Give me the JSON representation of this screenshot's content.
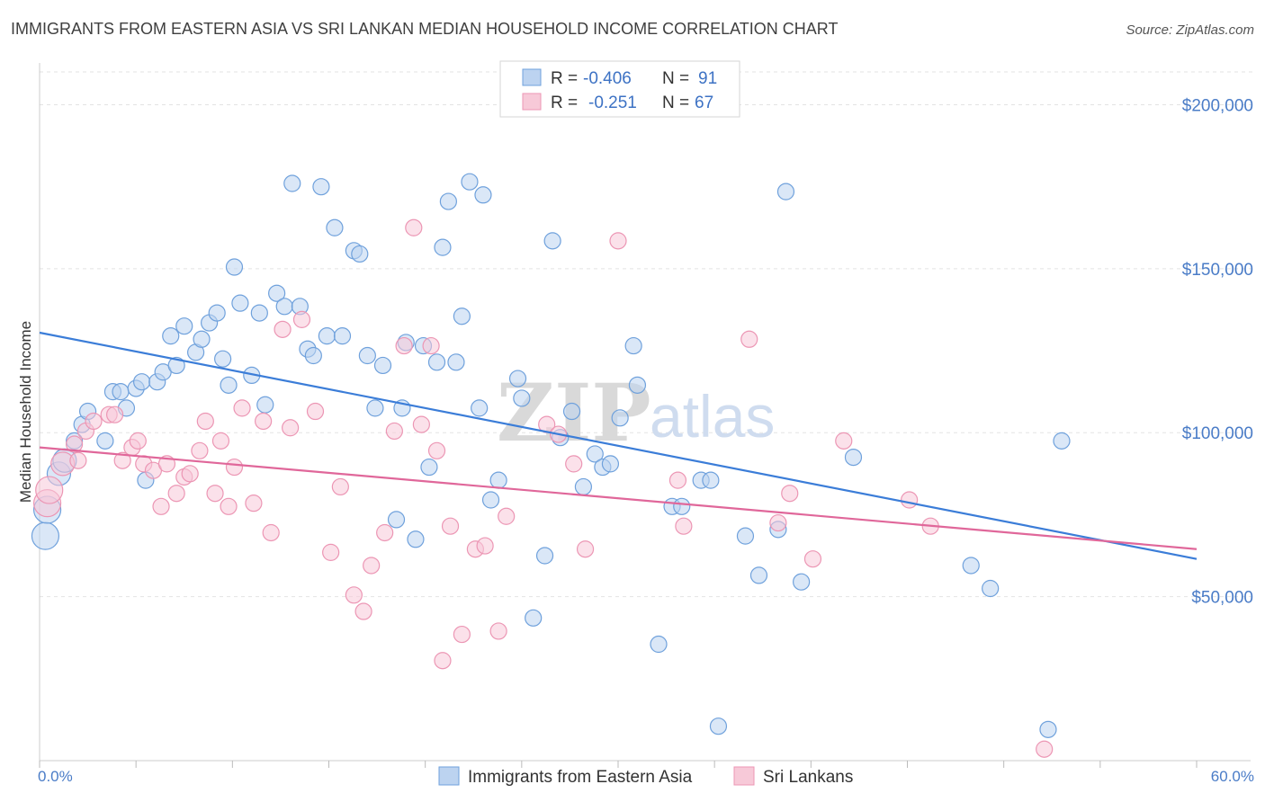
{
  "chart_data": {
    "type": "scatter",
    "title": "IMMIGRANTS FROM EASTERN ASIA VS SRI LANKAN MEDIAN HOUSEHOLD INCOME CORRELATION CHART",
    "source": "Source: ZipAtlas.com",
    "ylabel": "Median Household Income",
    "xlim": [
      0,
      60
    ],
    "ylim": [
      0,
      210000
    ],
    "x_tick_labels": [
      "0.0%",
      "60.0%"
    ],
    "y_ticks": [
      {
        "value": 50000,
        "label": "$50,000"
      },
      {
        "value": 100000,
        "label": "$100,000"
      },
      {
        "value": 150000,
        "label": "$150,000"
      },
      {
        "value": 200000,
        "label": "$200,000"
      }
    ],
    "grid": true,
    "legend": {
      "placement": "top-center",
      "rows": [
        {
          "r_label": "R =",
          "r_value": "-0.406",
          "n_label": "N =",
          "n_value": "91"
        },
        {
          "r_label": "R =",
          "r_value": "-0.251",
          "n_label": "N =",
          "n_value": "67"
        }
      ]
    },
    "colors": {
      "blue": "#6fa1dc",
      "blue_fill": "#bcd3f0",
      "blue_line": "#3b7dd8",
      "pink": "#ec96b4",
      "pink_fill": "#f7c9d8",
      "pink_line": "#e0679a"
    },
    "series": [
      {
        "name": "Immigrants from Eastern Asia",
        "color": "#6fa1dc",
        "trend": {
          "x": [
            0,
            60
          ],
          "y": [
            130500,
            61500
          ]
        },
        "points": [
          [
            0.3,
            68500
          ],
          [
            0.4,
            76500
          ],
          [
            1.0,
            87500
          ],
          [
            1.3,
            91500
          ],
          [
            1.8,
            97500
          ],
          [
            2.2,
            102500
          ],
          [
            2.5,
            106500
          ],
          [
            3.4,
            97500
          ],
          [
            3.8,
            112500
          ],
          [
            4.2,
            112500
          ],
          [
            4.5,
            107500
          ],
          [
            5.0,
            113500
          ],
          [
            5.3,
            115500
          ],
          [
            5.5,
            85500
          ],
          [
            6.1,
            115500
          ],
          [
            6.4,
            118500
          ],
          [
            7.1,
            120500
          ],
          [
            6.8,
            129500
          ],
          [
            7.5,
            132500
          ],
          [
            8.1,
            124500
          ],
          [
            8.4,
            128500
          ],
          [
            8.8,
            133500
          ],
          [
            9.2,
            136500
          ],
          [
            9.5,
            122500
          ],
          [
            9.8,
            114500
          ],
          [
            10.1,
            150500
          ],
          [
            10.4,
            139500
          ],
          [
            11.0,
            117500
          ],
          [
            11.4,
            136500
          ],
          [
            11.7,
            108500
          ],
          [
            12.3,
            142500
          ],
          [
            12.7,
            138500
          ],
          [
            13.1,
            176000
          ],
          [
            13.5,
            138500
          ],
          [
            13.9,
            125500
          ],
          [
            14.2,
            123500
          ],
          [
            14.6,
            175000
          ],
          [
            14.9,
            129500
          ],
          [
            15.3,
            162500
          ],
          [
            15.7,
            129500
          ],
          [
            16.3,
            155500
          ],
          [
            16.6,
            154500
          ],
          [
            17.0,
            123500
          ],
          [
            17.4,
            107500
          ],
          [
            17.8,
            120500
          ],
          [
            18.5,
            73500
          ],
          [
            18.8,
            107500
          ],
          [
            19.0,
            127500
          ],
          [
            19.5,
            67500
          ],
          [
            19.9,
            126500
          ],
          [
            20.2,
            89500
          ],
          [
            20.6,
            121500
          ],
          [
            20.9,
            156500
          ],
          [
            21.2,
            170500
          ],
          [
            21.6,
            121500
          ],
          [
            21.9,
            135500
          ],
          [
            22.3,
            176500
          ],
          [
            22.8,
            107500
          ],
          [
            23.0,
            172500
          ],
          [
            23.4,
            79500
          ],
          [
            23.8,
            85500
          ],
          [
            24.8,
            116500
          ],
          [
            25.0,
            110500
          ],
          [
            25.6,
            43500
          ],
          [
            26.2,
            62500
          ],
          [
            26.6,
            158500
          ],
          [
            27.0,
            98500
          ],
          [
            27.6,
            106500
          ],
          [
            28.2,
            83500
          ],
          [
            28.8,
            93500
          ],
          [
            29.2,
            89500
          ],
          [
            29.6,
            90500
          ],
          [
            30.1,
            104500
          ],
          [
            30.8,
            126500
          ],
          [
            31.0,
            114500
          ],
          [
            32.1,
            35500
          ],
          [
            32.8,
            77500
          ],
          [
            33.3,
            77500
          ],
          [
            34.3,
            85500
          ],
          [
            34.8,
            85500
          ],
          [
            35.2,
            10500
          ],
          [
            36.6,
            68500
          ],
          [
            37.3,
            56500
          ],
          [
            38.3,
            70500
          ],
          [
            38.7,
            173500
          ],
          [
            39.5,
            54500
          ],
          [
            42.2,
            92500
          ],
          [
            48.3,
            59500
          ],
          [
            49.3,
            52500
          ],
          [
            52.3,
            9500
          ],
          [
            53.0,
            97500
          ]
        ]
      },
      {
        "name": "Sri Lankans",
        "color": "#ec96b4",
        "trend": {
          "x": [
            0,
            60
          ],
          "y": [
            95500,
            64500
          ]
        },
        "points": [
          [
            0.4,
            78500
          ],
          [
            0.5,
            82500
          ],
          [
            1.2,
            90500
          ],
          [
            1.8,
            96500
          ],
          [
            2.0,
            91500
          ],
          [
            2.4,
            100500
          ],
          [
            2.8,
            103500
          ],
          [
            3.6,
            105500
          ],
          [
            3.9,
            105500
          ],
          [
            4.3,
            91500
          ],
          [
            4.8,
            95500
          ],
          [
            5.1,
            97500
          ],
          [
            5.4,
            90500
          ],
          [
            5.9,
            88500
          ],
          [
            6.3,
            77500
          ],
          [
            6.6,
            90500
          ],
          [
            7.1,
            81500
          ],
          [
            7.5,
            86500
          ],
          [
            7.8,
            87500
          ],
          [
            8.3,
            94500
          ],
          [
            8.6,
            103500
          ],
          [
            9.1,
            81500
          ],
          [
            9.4,
            97500
          ],
          [
            9.8,
            77500
          ],
          [
            10.1,
            89500
          ],
          [
            10.5,
            107500
          ],
          [
            11.1,
            78500
          ],
          [
            11.6,
            103500
          ],
          [
            12.0,
            69500
          ],
          [
            12.6,
            131500
          ],
          [
            13.0,
            101500
          ],
          [
            13.6,
            134500
          ],
          [
            14.3,
            106500
          ],
          [
            15.1,
            63500
          ],
          [
            15.6,
            83500
          ],
          [
            16.3,
            50500
          ],
          [
            16.8,
            45500
          ],
          [
            17.2,
            59500
          ],
          [
            17.9,
            69500
          ],
          [
            18.4,
            100500
          ],
          [
            18.9,
            126500
          ],
          [
            19.4,
            162500
          ],
          [
            19.8,
            102500
          ],
          [
            20.3,
            126500
          ],
          [
            20.6,
            94500
          ],
          [
            20.9,
            30500
          ],
          [
            21.3,
            71500
          ],
          [
            21.9,
            38500
          ],
          [
            22.6,
            64500
          ],
          [
            23.1,
            65500
          ],
          [
            23.8,
            39500
          ],
          [
            24.2,
            74500
          ],
          [
            26.3,
            102500
          ],
          [
            26.9,
            99500
          ],
          [
            27.7,
            90500
          ],
          [
            28.3,
            64500
          ],
          [
            30.0,
            158500
          ],
          [
            33.1,
            85500
          ],
          [
            33.4,
            71500
          ],
          [
            36.8,
            128500
          ],
          [
            38.3,
            72500
          ],
          [
            38.9,
            81500
          ],
          [
            40.1,
            61500
          ],
          [
            41.7,
            97500
          ],
          [
            45.1,
            79500
          ],
          [
            46.2,
            71500
          ],
          [
            52.1,
            3500
          ]
        ]
      }
    ]
  },
  "bottom_legend": {
    "items": [
      "Immigrants from Eastern Asia",
      "Sri Lankans"
    ]
  },
  "watermark": {
    "zip": "ZIP",
    "atlas": "atlas"
  }
}
